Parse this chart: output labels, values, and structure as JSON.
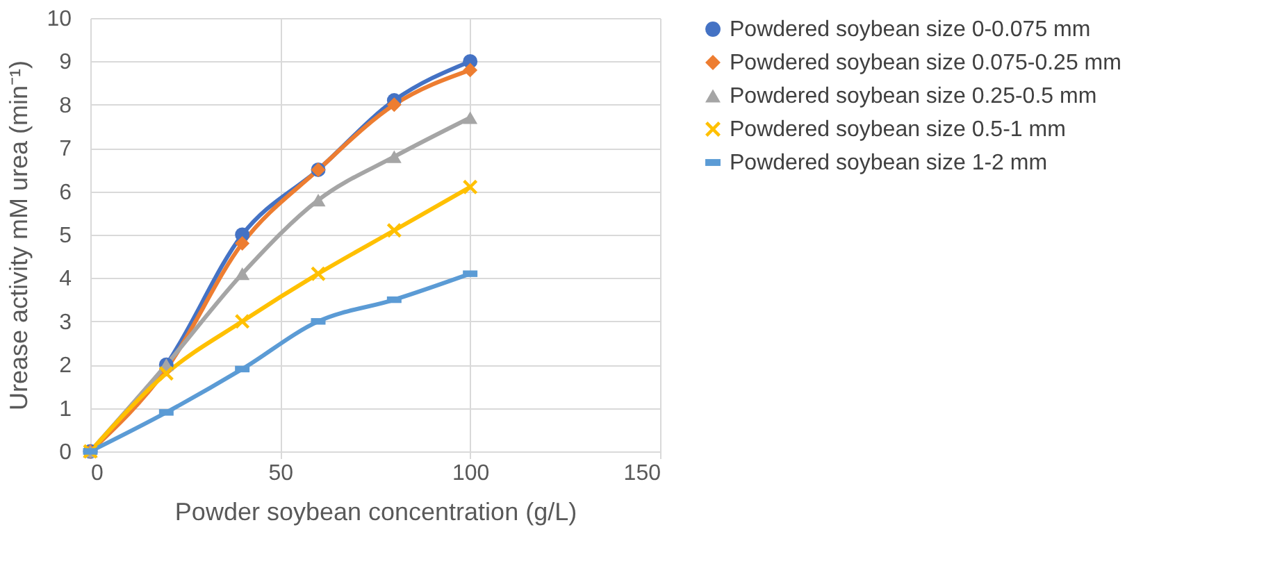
{
  "chart_data": {
    "type": "line",
    "xlabel": "Powder soybean concentration (g/L)",
    "ylabel": "Urease activity mM urea (min⁻¹)",
    "x": [
      0,
      20,
      40,
      60,
      80,
      100
    ],
    "series": [
      {
        "name": "Powdered soybean size 0-0.075 mm",
        "color": "#4472c4",
        "marker": "circle",
        "values": [
          0,
          2,
          5,
          6.5,
          8.1,
          9
        ]
      },
      {
        "name": "Powdered soybean size 0.075-0.25 mm",
        "color": "#ed7d31",
        "marker": "diamond",
        "values": [
          0,
          1.9,
          4.8,
          6.5,
          8.0,
          8.8
        ]
      },
      {
        "name": "Powdered soybean size 0.25-0.5 mm",
        "color": "#a5a5a5",
        "marker": "triangle",
        "values": [
          0,
          2,
          4.1,
          5.8,
          6.8,
          7.7
        ]
      },
      {
        "name": "Powdered soybean size 0.5-1 mm",
        "color": "#ffc000",
        "marker": "cross",
        "values": [
          0,
          1.8,
          3.0,
          4.1,
          5.1,
          6.1
        ]
      },
      {
        "name": "Powdered soybean size 1-2 mm",
        "color": "#5b9bd5",
        "marker": "square",
        "values": [
          0,
          0.9,
          1.9,
          3.0,
          3.5,
          4.1
        ]
      }
    ],
    "xlim": [
      0,
      150
    ],
    "xticks": [
      0,
      50,
      100,
      150
    ],
    "ylim": [
      0,
      10
    ],
    "yticks": [
      0,
      1,
      2,
      3,
      4,
      5,
      6,
      7,
      8,
      9,
      10
    ],
    "grid": true,
    "legend": "right",
    "line_style": "solid"
  }
}
